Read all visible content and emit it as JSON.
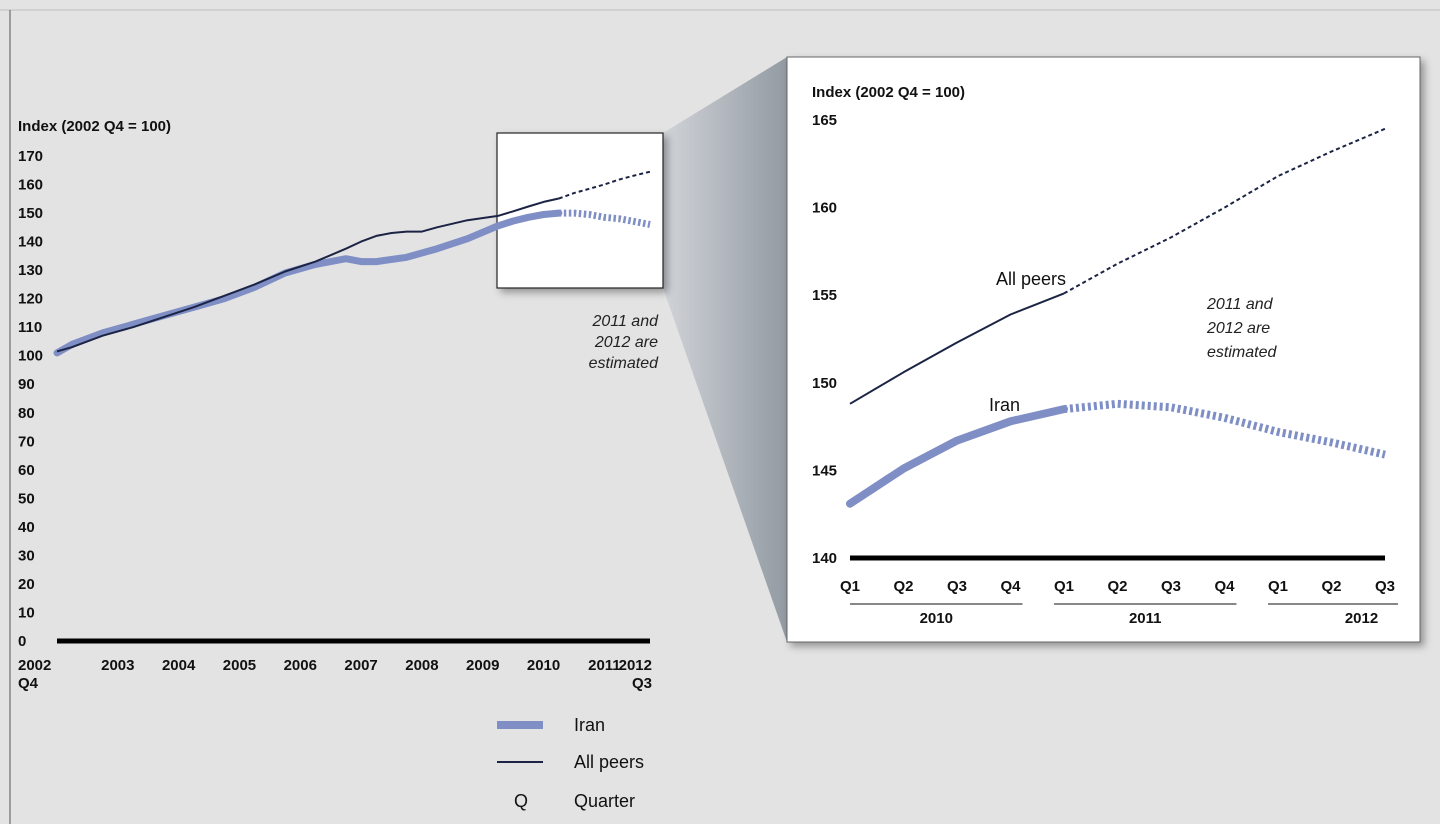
{
  "chart_data": [
    {
      "type": "line",
      "ylabel": "Index (2002 Q4 = 100)",
      "ylim": [
        0,
        170
      ],
      "yticks": [
        0,
        10,
        20,
        30,
        40,
        50,
        60,
        70,
        80,
        90,
        100,
        110,
        120,
        130,
        140,
        150,
        160,
        170
      ],
      "x_labels": [
        {
          "x": 2002.75,
          "top": "2002",
          "bottom": "Q4"
        },
        {
          "x": 2003.75,
          "top": "2003",
          "bottom": ""
        },
        {
          "x": 2004.75,
          "top": "2004",
          "bottom": ""
        },
        {
          "x": 2005.75,
          "top": "2005",
          "bottom": ""
        },
        {
          "x": 2006.75,
          "top": "2006",
          "bottom": ""
        },
        {
          "x": 2007.75,
          "top": "2007",
          "bottom": ""
        },
        {
          "x": 2008.75,
          "top": "2008",
          "bottom": ""
        },
        {
          "x": 2009.75,
          "top": "2009",
          "bottom": ""
        },
        {
          "x": 2010.75,
          "top": "2010",
          "bottom": ""
        },
        {
          "x": 2011.75,
          "top": "2011",
          "bottom": ""
        },
        {
          "x": 2012.75,
          "top": "2012",
          "bottom": "Q3"
        }
      ],
      "xlim": [
        2002.75,
        2012.5
      ],
      "series": [
        {
          "name": "Iran",
          "color": "#7f8fc6",
          "x": [
            2002.75,
            2003.0,
            2003.5,
            2004.0,
            2004.5,
            2005.0,
            2005.5,
            2006.0,
            2006.5,
            2007.0,
            2007.25,
            2007.5,
            2007.75,
            2008.0,
            2008.5,
            2009.0,
            2009.5,
            2010.0,
            2010.25,
            2010.5,
            2010.75,
            2011.0,
            2011.25,
            2011.5,
            2011.75,
            2012.0,
            2012.25,
            2012.5
          ],
          "y": [
            101,
            104,
            108,
            111,
            114,
            117,
            120,
            124,
            129,
            132,
            133,
            134,
            133,
            133,
            134.5,
            137.5,
            141,
            145.5,
            147.2,
            148.5,
            149.5,
            150,
            150,
            149.5,
            148.5,
            148,
            147,
            146
          ],
          "estimated_from": 2011.0
        },
        {
          "name": "All peers",
          "color": "#1b2444",
          "x": [
            2002.75,
            2003.0,
            2003.5,
            2004.0,
            2004.5,
            2005.0,
            2005.5,
            2006.0,
            2006.5,
            2007.0,
            2007.5,
            2007.75,
            2008.0,
            2008.25,
            2008.5,
            2008.75,
            2009.0,
            2009.5,
            2010.0,
            2010.25,
            2010.5,
            2010.75,
            2011.0,
            2011.25,
            2011.5,
            2011.75,
            2012.0,
            2012.25,
            2012.5
          ],
          "y": [
            101.5,
            103,
            107,
            110,
            113.5,
            117,
            121,
            125,
            129.5,
            133,
            137.5,
            140,
            142,
            143,
            143.5,
            143.5,
            145,
            147.5,
            149,
            150.6,
            152.3,
            153.9,
            155.1,
            157,
            158.5,
            160,
            161.8,
            163.2,
            164.5
          ],
          "estimated_from": 2011.0
        }
      ],
      "note": [
        "2011 and",
        "2012 are",
        "estimated"
      ],
      "zoom_box": {
        "x_from": 2010.0,
        "x_to": 2012.5,
        "y_from": 140,
        "y_to": 165
      }
    },
    {
      "type": "line",
      "ylabel": "Index (2002 Q4 = 100)",
      "ylim": [
        140,
        165
      ],
      "yticks": [
        140,
        145,
        150,
        155,
        160,
        165
      ],
      "categories": [
        "Q1",
        "Q2",
        "Q3",
        "Q4",
        "Q1",
        "Q2",
        "Q3",
        "Q4",
        "Q1",
        "Q2",
        "Q3"
      ],
      "year_groups": [
        {
          "label": "2010",
          "from": 0,
          "to": 3
        },
        {
          "label": "2011",
          "from": 4,
          "to": 7
        },
        {
          "label": "2012",
          "from": 8,
          "to": 10
        }
      ],
      "estimated_from_index": 4,
      "series": [
        {
          "name": "All peers",
          "label": "All peers",
          "color": "#1b2444",
          "values": [
            148.8,
            150.6,
            152.3,
            153.9,
            155.1,
            156.8,
            158.3,
            160.0,
            161.8,
            163.2,
            164.5
          ]
        },
        {
          "name": "Iran",
          "label": "Iran",
          "color": "#7f8fc6",
          "values": [
            143.1,
            145.1,
            146.7,
            147.8,
            148.5,
            148.8,
            148.6,
            148.0,
            147.2,
            146.6,
            145.9
          ]
        }
      ],
      "note": [
        "2011 and",
        "2012 are",
        "estimated"
      ]
    }
  ],
  "legend": [
    {
      "symbol": "thick-line",
      "color": "#7f8fc6",
      "label": "Iran"
    },
    {
      "symbol": "thin-line",
      "color": "#1b2444",
      "label": "All peers"
    },
    {
      "symbol": "Q",
      "color": "#111111",
      "label": "Quarter"
    }
  ]
}
